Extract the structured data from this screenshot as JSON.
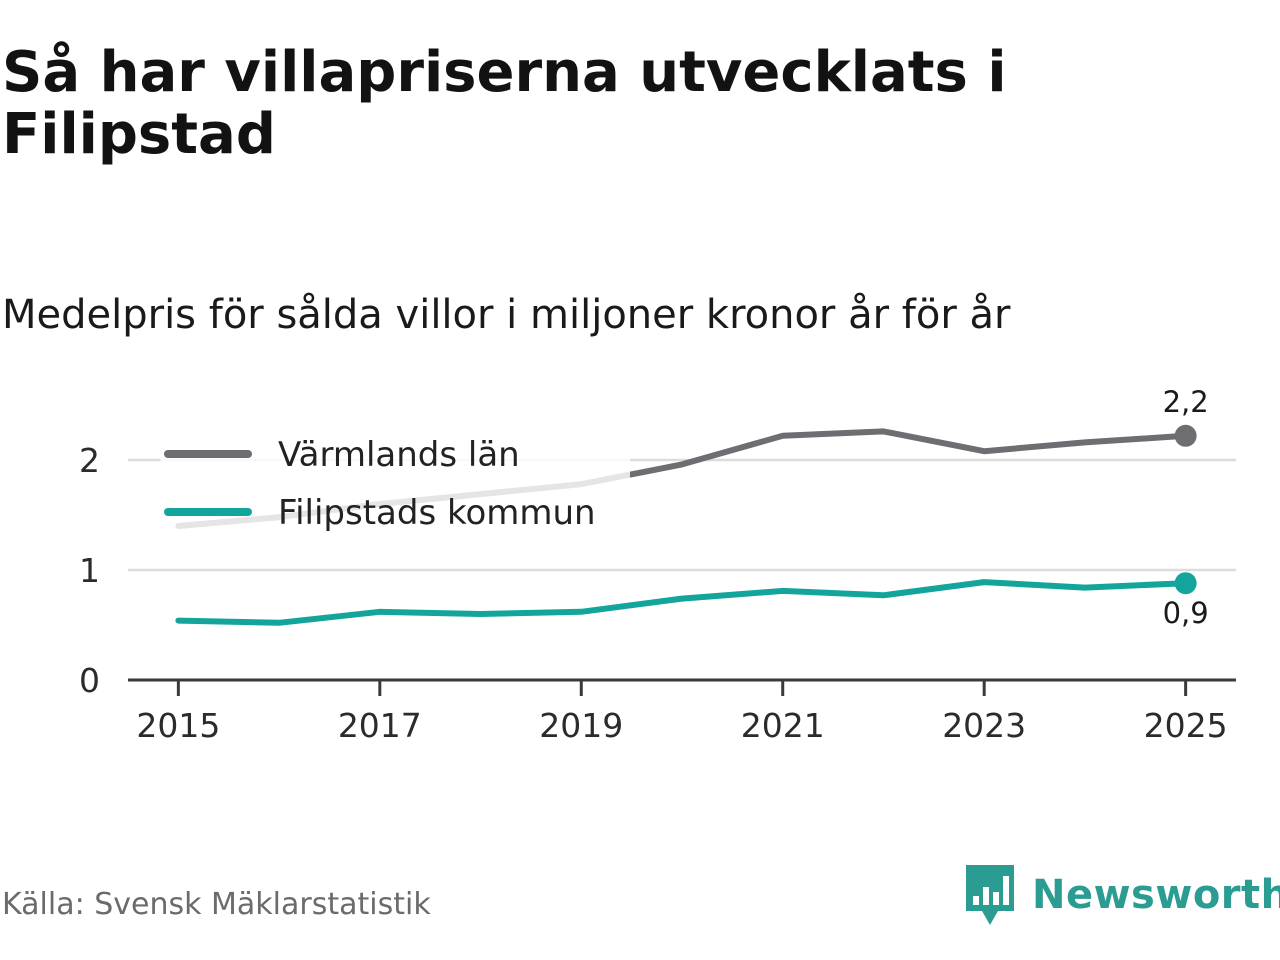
{
  "title": "Så har villapriserna utvecklats i Filipstad",
  "subtitle": "Medelpris för sålda villor i miljoner kronor år för år",
  "source": "Källa: Svensk Mäklarstatistik",
  "brand": {
    "name": "Newsworthy",
    "color": "#2a9c92",
    "icon": "newsworthy-logo-icon"
  },
  "chart_data": {
    "type": "line",
    "title": "Så har villapriserna utvecklats i Filipstad",
    "subtitle": "Medelpris för sålda villor i miljoner kronor år för år",
    "xlabel": "",
    "ylabel": "",
    "x": [
      2015,
      2016,
      2017,
      2018,
      2019,
      2020,
      2021,
      2022,
      2023,
      2024,
      2025
    ],
    "x_tick_labels": [
      "2015",
      "2017",
      "2019",
      "2021",
      "2023",
      "2025"
    ],
    "y_ticks": [
      0,
      1,
      2
    ],
    "y_tick_labels": [
      "0",
      "1",
      "2"
    ],
    "xlim": [
      2014.5,
      2025.5
    ],
    "ylim": [
      0,
      2.5
    ],
    "grid": true,
    "legend_position": "top-left",
    "series": [
      {
        "name": "Värmlands län",
        "color": "#6d6d72",
        "values": [
          1.4,
          1.48,
          1.6,
          1.69,
          1.78,
          1.96,
          2.22,
          2.26,
          2.08,
          2.16,
          2.22
        ],
        "end_label": "2,2"
      },
      {
        "name": "Filipstads kommun",
        "color": "#13a59b",
        "values": [
          0.54,
          0.52,
          0.62,
          0.6,
          0.62,
          0.74,
          0.81,
          0.77,
          0.89,
          0.84,
          0.88
        ],
        "end_label": "0,9"
      }
    ]
  }
}
